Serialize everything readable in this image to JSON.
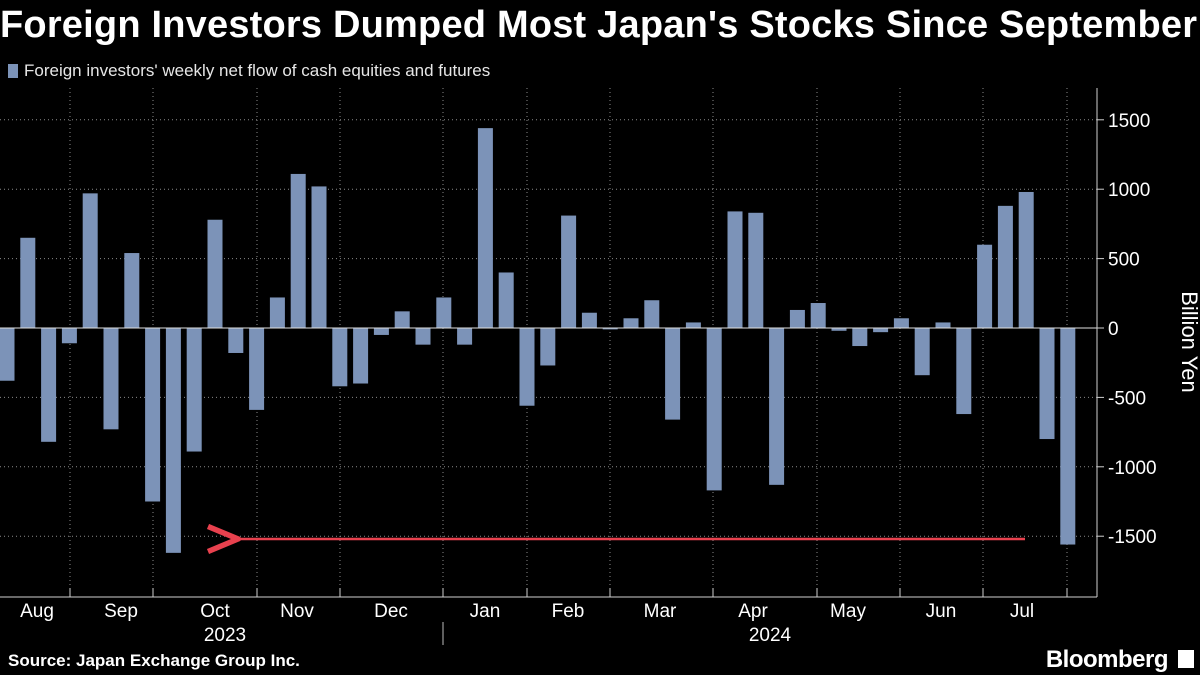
{
  "title": "Foreign Investors Dumped Most Japan's Stocks Since September",
  "legend": "Foreign investors' weekly net flow of cash equities and futures",
  "source": "Source: Japan Exchange Group Inc.",
  "brand": "Bloomberg",
  "colors": {
    "bar": "#7c93b8",
    "arrow": "#e8414e",
    "background": "#000000"
  },
  "chart_data": {
    "type": "bar",
    "ylabel": "Billion Yen",
    "ylim": [
      -1850,
      1750
    ],
    "yticks": [
      "1500",
      "1000",
      "500",
      "0",
      "-500",
      "-1000",
      "-1500"
    ],
    "ytick_values": [
      1500,
      1000,
      500,
      0,
      -500,
      -1000,
      -1500
    ],
    "month_labels": [
      "Aug",
      "Sep",
      "Oct",
      "Nov",
      "Dec",
      "Jan",
      "Feb",
      "Mar",
      "Apr",
      "May",
      "Jun",
      "Jul"
    ],
    "year_labels": [
      "2023",
      "2024"
    ],
    "series": [
      {
        "values": [
          -380,
          650,
          -820,
          -110,
          970,
          -730,
          540,
          -1250,
          -1620,
          -890,
          780,
          -180,
          -590,
          220,
          1110,
          1020,
          -420,
          -400,
          -50,
          120,
          -120,
          220,
          -120,
          1440,
          400,
          -560,
          -270,
          810,
          110,
          -10,
          70,
          200,
          -660,
          40,
          -1170,
          840,
          830,
          -1130,
          130,
          180,
          -20,
          -130,
          -30,
          70,
          -340,
          40,
          -620,
          600,
          880,
          980,
          -800,
          -1560
        ]
      }
    ],
    "annotation": {
      "type": "arrow",
      "from_value": -1520,
      "to_value": -1520
    }
  }
}
